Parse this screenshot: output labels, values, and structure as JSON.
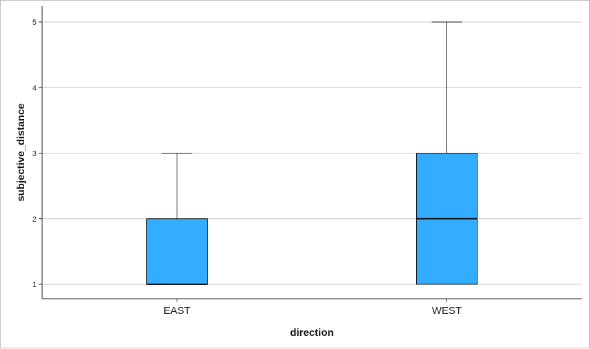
{
  "chart_data": {
    "type": "boxplot",
    "xlabel": "direction",
    "ylabel": "subjective_distance",
    "categories": [
      "EAST",
      "WEST"
    ],
    "boxes": [
      {
        "category": "EAST",
        "min": 1,
        "q1": 1,
        "median": 1,
        "q3": 2,
        "max": 3
      },
      {
        "category": "WEST",
        "min": 1,
        "q1": 1,
        "median": 2,
        "q3": 3,
        "max": 5
      }
    ],
    "y_ticks": [
      1,
      2,
      3,
      4,
      5
    ],
    "ylim": [
      0.8,
      5.2
    ],
    "grid": true,
    "colors": {
      "box_fill": "#33adff",
      "box_stroke": "#111111",
      "grid": "#c6c6c6",
      "axis": "#222222"
    }
  }
}
